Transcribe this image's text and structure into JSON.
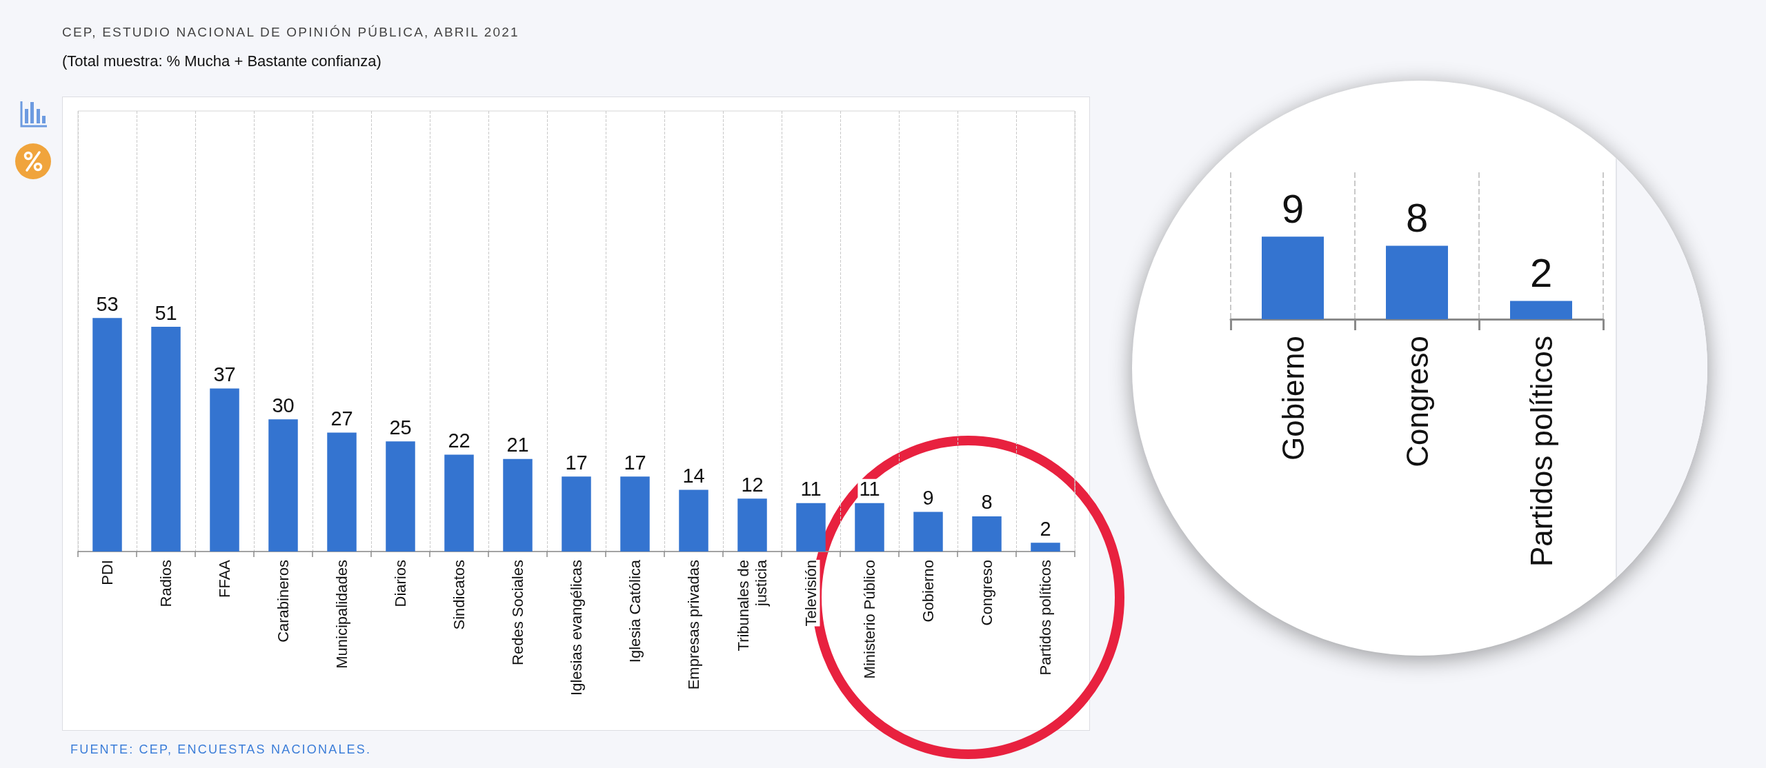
{
  "chart_data": [
    {
      "type": "bar",
      "title": "CEP, ESTUDIO NACIONAL DE OPINIÓN PÚBLICA, ABRIL 2021",
      "subtitle": "(Total muestra: % Mucha + Bastante confianza)",
      "annotations": [
        "FUENTE: CEP, ENCUESTAS NACIONALES."
      ],
      "categories": [
        "PDI",
        "Radios",
        "FFAA",
        "Carabineros",
        "Municipalidades",
        "Diarios",
        "Sindicatos",
        "Redes Sociales",
        "Iglesias evangélicas",
        "Iglesia Católica",
        "Empresas privadas",
        "Tribunales de justicia",
        "Televisión",
        "Ministerio Público",
        "Gobierno",
        "Congreso",
        "Partidos políticos"
      ],
      "values": [
        53,
        51,
        37,
        30,
        27,
        25,
        22,
        21,
        17,
        17,
        14,
        12,
        11,
        11,
        9,
        8,
        2
      ],
      "color": "#3474d0",
      "ylim": [
        0,
        100
      ],
      "tick_labels": "x",
      "grid": "x",
      "data_labels": true
    },
    {
      "type": "bar",
      "categories": [
        "Gobierno",
        "Congreso",
        "Partidos políticos"
      ],
      "values": [
        9,
        8,
        2
      ],
      "color": "#3474d0",
      "ylim": [
        0,
        16
      ],
      "tick_labels": "x",
      "grid": "x",
      "data_labels": true
    }
  ]
}
